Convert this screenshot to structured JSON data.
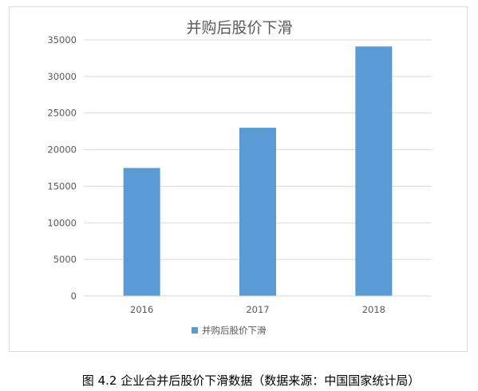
{
  "chart_data": {
    "type": "bar",
    "title": "并购后股价下滑",
    "categories": [
      "2016",
      "2017",
      "2018"
    ],
    "series": [
      {
        "name": "并购后股价下滑",
        "values": [
          17500,
          23000,
          34100
        ],
        "color": "#5b9bd5"
      }
    ],
    "ylim": [
      0,
      35000
    ],
    "yticks": [
      0,
      5000,
      10000,
      15000,
      20000,
      25000,
      30000,
      35000
    ],
    "grid": true,
    "legend": "bottom"
  },
  "caption": "图  4.2  企业合并后股价下滑数据（数据来源：中国国家统计局）"
}
